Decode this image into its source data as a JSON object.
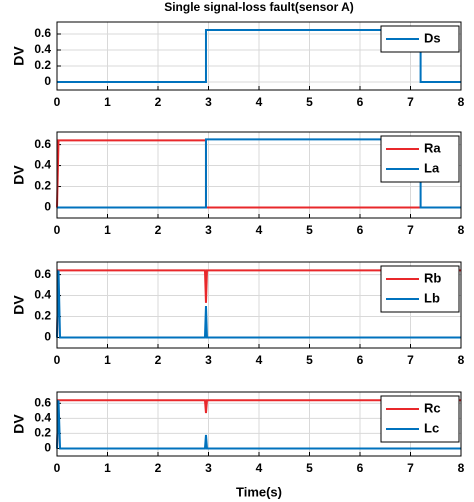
{
  "chart_data": [
    {
      "type": "line",
      "title": "Single signal-loss fault(sensor A)",
      "y_label": "DV",
      "xlim": [
        0,
        8
      ],
      "ylim": [
        -0.1,
        0.75
      ],
      "xticks": [
        0,
        1,
        2,
        3,
        4,
        5,
        6,
        7,
        8
      ],
      "yticks": [
        0,
        0.2,
        0.4,
        0.6
      ],
      "grid": true,
      "legend": "upper right",
      "series": [
        {
          "name": "Ds",
          "color": "#0072bd",
          "x": [
            0,
            2.95,
            2.95,
            7.2,
            7.2,
            8
          ],
          "values": [
            0,
            0,
            0.65,
            0.65,
            0,
            0
          ]
        }
      ]
    },
    {
      "type": "line",
      "y_label": "DV",
      "xlim": [
        0,
        8
      ],
      "ylim": [
        -0.1,
        0.72
      ],
      "xticks": [
        0,
        1,
        2,
        3,
        4,
        5,
        6,
        7,
        8
      ],
      "yticks": [
        0,
        0.2,
        0.4,
        0.6
      ],
      "grid": true,
      "legend": "upper right",
      "series": [
        {
          "name": "Ra",
          "color": "#e8282b",
          "x": [
            0,
            0.03,
            2.95,
            2.95,
            8
          ],
          "values": [
            0,
            0.64,
            0.64,
            0,
            0
          ]
        },
        {
          "name": "La",
          "color": "#0072bd",
          "x": [
            0,
            2.95,
            2.95,
            7.2,
            7.2,
            8
          ],
          "values": [
            0,
            0,
            0.65,
            0.65,
            0,
            0
          ]
        }
      ]
    },
    {
      "type": "line",
      "y_label": "DV",
      "xlim": [
        0,
        8
      ],
      "ylim": [
        -0.1,
        0.72
      ],
      "xticks": [
        0,
        1,
        2,
        3,
        4,
        5,
        6,
        7,
        8
      ],
      "yticks": [
        0,
        0.2,
        0.4,
        0.6
      ],
      "grid": true,
      "legend": "upper right",
      "series": [
        {
          "name": "Rb",
          "color": "#e8282b",
          "x": [
            0,
            0.03,
            2.93,
            2.95,
            2.97,
            8
          ],
          "values": [
            0,
            0.64,
            0.64,
            0.33,
            0.64,
            0.64
          ]
        },
        {
          "name": "Lb",
          "color": "#0072bd",
          "x": [
            0,
            0.03,
            0.06,
            2.93,
            2.95,
            2.97,
            8
          ],
          "values": [
            0,
            0.64,
            0,
            0,
            0.3,
            0,
            0
          ]
        }
      ]
    },
    {
      "type": "line",
      "y_label": "DV",
      "x_label": "Time(s)",
      "xlim": [
        0,
        8
      ],
      "ylim": [
        -0.1,
        0.75
      ],
      "xticks": [
        0,
        1,
        2,
        3,
        4,
        5,
        6,
        7,
        8
      ],
      "yticks": [
        0,
        0.2,
        0.4,
        0.6
      ],
      "grid": true,
      "legend": "upper right",
      "series": [
        {
          "name": "Rc",
          "color": "#e8282b",
          "x": [
            0,
            0.03,
            2.93,
            2.95,
            2.97,
            8
          ],
          "values": [
            0,
            0.64,
            0.64,
            0.47,
            0.64,
            0.64
          ]
        },
        {
          "name": "Lc",
          "color": "#0072bd",
          "x": [
            0,
            0.03,
            0.06,
            2.93,
            2.95,
            2.97,
            8
          ],
          "values": [
            0,
            0.64,
            0,
            0,
            0.18,
            0,
            0
          ]
        }
      ]
    }
  ]
}
